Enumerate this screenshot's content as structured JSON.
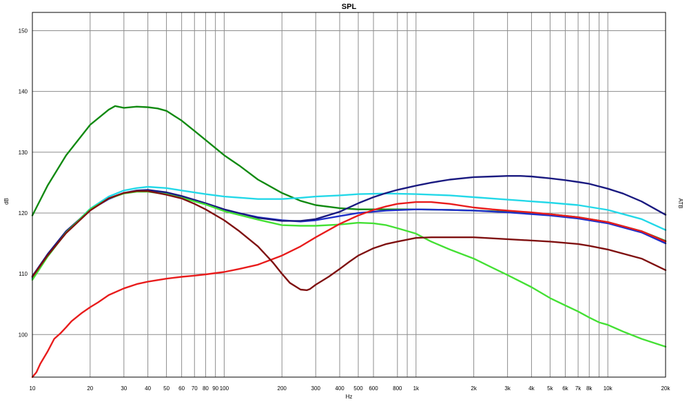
{
  "chart_data": {
    "type": "line",
    "title": "SPL",
    "xlabel": "Hz",
    "ylabel": "dB",
    "right_label": "ATB",
    "x_scale": "log",
    "xlim": [
      10,
      20000
    ],
    "ylim": [
      93,
      153
    ],
    "grid": true,
    "x_ticks": [
      {
        "value": 10,
        "label": "10"
      },
      {
        "value": 20,
        "label": "20"
      },
      {
        "value": 30,
        "label": "30"
      },
      {
        "value": 40,
        "label": "40"
      },
      {
        "value": 50,
        "label": "50"
      },
      {
        "value": 60,
        "label": "60"
      },
      {
        "value": 70,
        "label": "70"
      },
      {
        "value": 80,
        "label": "80"
      },
      {
        "value": 90,
        "label": "90"
      },
      {
        "value": 100,
        "label": "100"
      },
      {
        "value": 200,
        "label": "200"
      },
      {
        "value": 300,
        "label": "300"
      },
      {
        "value": 400,
        "label": "400"
      },
      {
        "value": 500,
        "label": "500"
      },
      {
        "value": 600,
        "label": "600"
      },
      {
        "value": 800,
        "label": "800"
      },
      {
        "value": 1000,
        "label": "1k"
      },
      {
        "value": 2000,
        "label": "2k"
      },
      {
        "value": 3000,
        "label": "3k"
      },
      {
        "value": 4000,
        "label": "4k"
      },
      {
        "value": 5000,
        "label": "5k"
      },
      {
        "value": 6000,
        "label": "6k"
      },
      {
        "value": 7000,
        "label": "7k"
      },
      {
        "value": 8000,
        "label": "8k"
      },
      {
        "value": 10000,
        "label": "10k"
      },
      {
        "value": 20000,
        "label": "20k"
      }
    ],
    "x_minor_grid": [
      900,
      9000
    ],
    "y_ticks": [
      100,
      110,
      120,
      130,
      140,
      150
    ],
    "series": [
      {
        "color": "#118a11",
        "x": [
          10,
          12,
          15,
          20,
          25,
          27,
          30,
          35,
          40,
          45,
          50,
          60,
          70,
          80,
          100,
          120,
          150,
          200,
          250,
          300,
          400,
          500,
          700,
          1000,
          1500,
          2000,
          3000,
          5000,
          7000,
          10000,
          15000,
          20000
        ],
        "values": [
          119.6,
          124.5,
          129.5,
          134.5,
          137.0,
          137.6,
          137.3,
          137.5,
          137.4,
          137.2,
          136.8,
          135.2,
          133.5,
          132.0,
          129.5,
          127.8,
          125.5,
          123.3,
          122.0,
          121.3,
          120.8,
          120.6,
          120.6,
          120.6,
          120.5,
          120.4,
          120.2,
          119.8,
          119.3,
          118.5,
          117.0,
          115.4
        ]
      },
      {
        "color": "#1f2fc9",
        "x": [
          10,
          12,
          15,
          20,
          25,
          30,
          35,
          40,
          50,
          60,
          70,
          80,
          100,
          150,
          200,
          250,
          300,
          400,
          500,
          700,
          1000,
          1500,
          2000,
          3000,
          5000,
          7000,
          10000,
          15000,
          20000
        ],
        "values": [
          109.3,
          113.2,
          117.0,
          120.5,
          122.3,
          123.3,
          123.6,
          123.6,
          123.3,
          122.7,
          122.1,
          121.5,
          120.5,
          119.3,
          118.8,
          118.6,
          118.8,
          119.5,
          120.0,
          120.4,
          120.6,
          120.5,
          120.4,
          120.1,
          119.6,
          119.1,
          118.3,
          116.8,
          115.0
        ]
      },
      {
        "color": "#23d8e8",
        "x": [
          10,
          12,
          15,
          20,
          25,
          30,
          35,
          40,
          50,
          60,
          80,
          100,
          150,
          200,
          250,
          300,
          400,
          500,
          700,
          1000,
          1500,
          2000,
          3000,
          5000,
          7000,
          10000,
          15000,
          20000
        ],
        "values": [
          109.1,
          113.0,
          116.8,
          120.7,
          122.7,
          123.7,
          124.1,
          124.3,
          124.1,
          123.7,
          123.1,
          122.7,
          122.3,
          122.3,
          122.5,
          122.7,
          122.9,
          123.1,
          123.2,
          123.1,
          122.9,
          122.6,
          122.2,
          121.7,
          121.3,
          120.5,
          119.0,
          117.2
        ]
      },
      {
        "color": "#1a1a80",
        "x": [
          10,
          12,
          15,
          20,
          25,
          30,
          35,
          40,
          50,
          60,
          80,
          100,
          150,
          200,
          250,
          300,
          400,
          500,
          600,
          700,
          800,
          1000,
          1200,
          1500,
          2000,
          2500,
          3000,
          3500,
          4000,
          5000,
          6000,
          7000,
          8000,
          10000,
          12000,
          15000,
          20000
        ],
        "values": [
          109.6,
          113.2,
          117.0,
          120.5,
          122.4,
          123.3,
          123.7,
          123.8,
          123.4,
          122.8,
          121.6,
          120.6,
          119.2,
          118.7,
          118.7,
          119.0,
          120.2,
          121.6,
          122.6,
          123.3,
          123.8,
          124.5,
          125.0,
          125.5,
          125.9,
          126.0,
          126.1,
          126.1,
          126.0,
          125.7,
          125.4,
          125.1,
          124.8,
          124.0,
          123.2,
          121.9,
          119.7
        ]
      },
      {
        "color": "#44e034",
        "x": [
          10,
          12,
          15,
          20,
          25,
          30,
          35,
          40,
          50,
          60,
          80,
          100,
          150,
          200,
          250,
          300,
          400,
          500,
          600,
          700,
          800,
          1000,
          1200,
          1500,
          2000,
          2500,
          3000,
          4000,
          5000,
          6000,
          7000,
          8000,
          9000,
          10000,
          12000,
          15000,
          20000
        ],
        "values": [
          109.0,
          112.8,
          116.8,
          120.6,
          122.4,
          123.2,
          123.5,
          123.5,
          123.1,
          122.5,
          121.4,
          120.3,
          118.9,
          118.0,
          117.9,
          117.9,
          118.1,
          118.4,
          118.3,
          118.0,
          117.5,
          116.6,
          115.3,
          114.0,
          112.5,
          111.0,
          109.8,
          107.8,
          106.0,
          104.8,
          103.8,
          102.8,
          102.0,
          101.6,
          100.5,
          99.3,
          98.0
        ]
      },
      {
        "color": "#e81c1c",
        "x": [
          10,
          10.5,
          11,
          12,
          13,
          14,
          15,
          16,
          18,
          20,
          22,
          25,
          30,
          35,
          40,
          50,
          60,
          70,
          80,
          100,
          120,
          150,
          200,
          250,
          300,
          400,
          500,
          600,
          700,
          800,
          1000,
          1200,
          1500,
          2000,
          2500,
          3000,
          4000,
          5000,
          7000,
          10000,
          15000,
          20000
        ],
        "values": [
          93.0,
          93.8,
          95.2,
          97.2,
          99.3,
          100.2,
          101.2,
          102.2,
          103.5,
          104.5,
          105.3,
          106.5,
          107.6,
          108.3,
          108.7,
          109.2,
          109.5,
          109.7,
          109.9,
          110.3,
          110.8,
          111.5,
          113.0,
          114.5,
          116.0,
          118.2,
          119.6,
          120.5,
          121.1,
          121.5,
          121.8,
          121.8,
          121.5,
          120.9,
          120.6,
          120.4,
          120.1,
          119.8,
          119.3,
          118.5,
          117.0,
          115.3
        ]
      },
      {
        "color": "#7f1010",
        "x": [
          10,
          12,
          15,
          20,
          25,
          30,
          35,
          40,
          50,
          60,
          70,
          80,
          100,
          120,
          150,
          180,
          200,
          220,
          250,
          270,
          280,
          300,
          350,
          400,
          450,
          500,
          600,
          700,
          800,
          1000,
          1200,
          1500,
          2000,
          3000,
          5000,
          7000,
          8000,
          10000,
          15000,
          20000
        ],
        "values": [
          109.5,
          113.0,
          116.7,
          120.4,
          122.4,
          123.3,
          123.6,
          123.6,
          123.0,
          122.4,
          121.5,
          120.6,
          118.8,
          117.0,
          114.5,
          111.8,
          110.0,
          108.5,
          107.4,
          107.3,
          107.5,
          108.2,
          109.5,
          110.8,
          112.0,
          113.0,
          114.2,
          114.9,
          115.3,
          115.9,
          116.0,
          116.0,
          116.0,
          115.7,
          115.3,
          114.9,
          114.6,
          114.0,
          112.5,
          110.6
        ]
      }
    ]
  }
}
